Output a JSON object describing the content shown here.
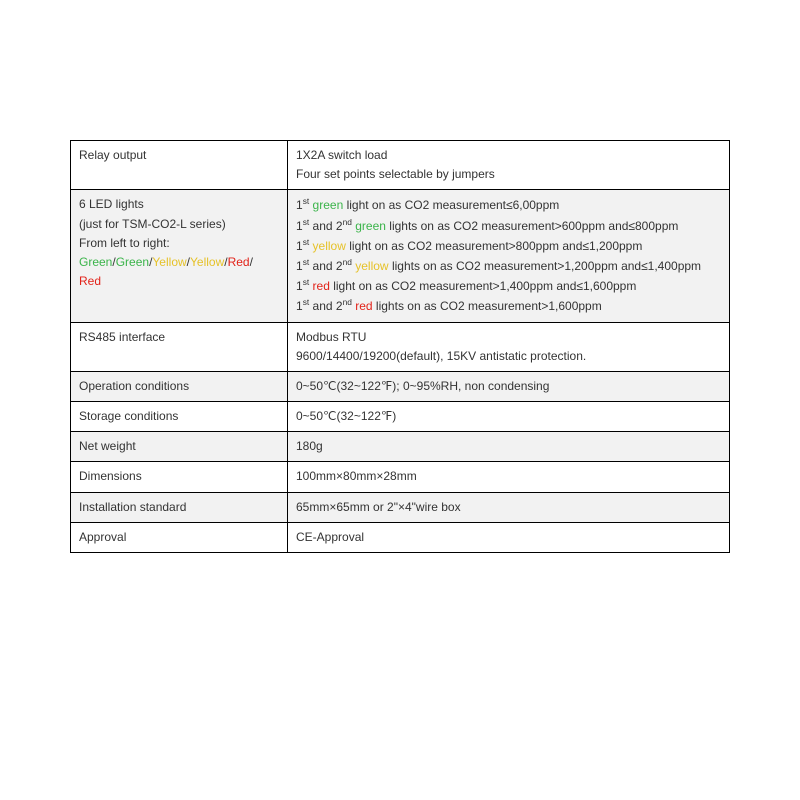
{
  "colors": {
    "green": "#3cb44a",
    "yellow": "#e6c12a",
    "red": "#e2231a",
    "text": "#333333",
    "border": "#000000",
    "shade": "#f2f2f2",
    "bg": "#ffffff"
  },
  "rows": {
    "relay": {
      "label": "Relay output",
      "l1": "1X2A switch load",
      "l2": "Four set points selectable by jumpers"
    },
    "leds": {
      "label_l1": "6 LED lights",
      "label_l2": "  (just for TSM-CO2-L series)",
      "label_l3": "From left to right:"
    },
    "rs485": {
      "label": "RS485 interface",
      "l1": "Modbus RTU",
      "l2": "9600/14400/19200(default), 15KV antistatic protection."
    },
    "op": {
      "label": "Operation conditions",
      "val": "0~50℃(32~122℉); 0~95%RH, non condensing"
    },
    "store": {
      "label": "Storage conditions",
      "val": "0~50℃(32~122℉)"
    },
    "net": {
      "label": "Net weight",
      "val": "180g"
    },
    "dim": {
      "label": "Dimensions",
      "val": "100mm×80mm×28mm"
    },
    "inst": {
      "label": "Installation standard",
      "val": "65mm×65mm or 2\"×4\"wire box"
    },
    "appr": {
      "label": "Approval",
      "val": "CE-Approval"
    }
  },
  "led_lines": {
    "g1": {
      "pre": "1",
      "sup": "st",
      "mid": " ",
      "color": "green",
      "txt": " light on as CO2 measurement≤6,00ppm"
    },
    "g2": {
      "a": "1",
      "as": "st",
      "b": " and 2",
      "bs": "nd",
      "mid": " ",
      "color": "green",
      "txt": " lights on as CO2 measurement>600ppm and≤800ppm"
    },
    "y1": {
      "pre": "1",
      "sup": "st",
      "mid": " ",
      "color": "yellow",
      "txt": " light on as CO2 measurement>800ppm and≤1,200ppm"
    },
    "y2": {
      "a": "1",
      "as": "st",
      "b": " and 2",
      "bs": "nd",
      "mid": " ",
      "color": "yellow",
      "txt": " lights on as CO2 measurement>1,200ppm and≤1,400ppm"
    },
    "r1": {
      "pre": "1",
      "sup": "st",
      "mid": " ",
      "color": "red",
      "txt": " light on as CO2 measurement>1,400ppm and≤1,600ppm"
    },
    "r2": {
      "a": "1",
      "as": "st",
      "b": " and 2",
      "bs": "nd",
      "mid": " ",
      "color": "red",
      "txt": " lights on as CO2 measurement>1,600ppm"
    }
  },
  "words": {
    "green": "green",
    "yellow": "yellow",
    "red": "red",
    "Green": "Green",
    "Yellow": "Yellow",
    "Red": "Red",
    "slash": "/"
  }
}
